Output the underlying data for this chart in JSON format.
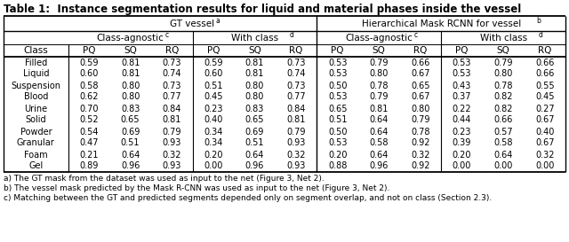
{
  "title": "Table 1:  Instance segmentation results for liquid and material phases inside the vessel",
  "rows": [
    [
      "Filled",
      "0.59",
      "0.81",
      "0.73",
      "0.59",
      "0.81",
      "0.73",
      "0.53",
      "0.79",
      "0.66",
      "0.53",
      "0.79",
      "0.66"
    ],
    [
      "Liquid",
      "0.60",
      "0.81",
      "0.74",
      "0.60",
      "0.81",
      "0.74",
      "0.53",
      "0.80",
      "0.67",
      "0.53",
      "0.80",
      "0.66"
    ],
    [
      "Suspension",
      "0.58",
      "0.80",
      "0.73",
      "0.51",
      "0.80",
      "0.73",
      "0.50",
      "0.78",
      "0.65",
      "0.43",
      "0.78",
      "0.55"
    ],
    [
      "Blood",
      "0.62",
      "0.80",
      "0.77",
      "0.45",
      "0.80",
      "0.77",
      "0.53",
      "0.79",
      "0.67",
      "0.37",
      "0.82",
      "0.45"
    ],
    [
      "Urine",
      "0.70",
      "0.83",
      "0.84",
      "0.23",
      "0.83",
      "0.84",
      "0.65",
      "0.81",
      "0.80",
      "0.22",
      "0.82",
      "0.27"
    ],
    [
      "Solid",
      "0.52",
      "0.65",
      "0.81",
      "0.40",
      "0.65",
      "0.81",
      "0.51",
      "0.64",
      "0.79",
      "0.44",
      "0.66",
      "0.67"
    ],
    [
      "Powder",
      "0.54",
      "0.69",
      "0.79",
      "0.34",
      "0.69",
      "0.79",
      "0.50",
      "0.64",
      "0.78",
      "0.23",
      "0.57",
      "0.40"
    ],
    [
      "Granular",
      "0.47",
      "0.51",
      "0.93",
      "0.34",
      "0.51",
      "0.93",
      "0.53",
      "0.58",
      "0.92",
      "0.39",
      "0.58",
      "0.67"
    ],
    [
      "Foam",
      "0.21",
      "0.64",
      "0.32",
      "0.20",
      "0.64",
      "0.32",
      "0.20",
      "0.64",
      "0.32",
      "0.20",
      "0.64",
      "0.32"
    ],
    [
      "Gel",
      "0.89",
      "0.96",
      "0.93",
      "0.00",
      "0.96",
      "0.93",
      "0.88",
      "0.96",
      "0.92",
      "0.00",
      "0.00",
      "0.00"
    ]
  ],
  "footnotes": [
    "a) The GT mask from the dataset was used as input to the net (Figure 3, Net 2).",
    "b) The vessel mask predicted by the Mask R-CNN was used as input to the net (Figure 3, Net 2).",
    "c) Matching between the GT and predicted segments depended only on segment overlap, and not on class (Section 2.3)."
  ],
  "col_header": [
    "Class",
    "PQ",
    "SQ",
    "RQ",
    "PQ",
    "SQ",
    "RQ",
    "PQ",
    "SQ",
    "RQ",
    "PQ",
    "SQ",
    "RQ"
  ],
  "subgroup_labels": [
    "Class-agnostic",
    "With class",
    "Class-agnostic",
    "With class"
  ],
  "subgroup_sups": [
    "c",
    "d",
    "c",
    "d"
  ],
  "group_labels": [
    "GT vessel",
    "Hierarchical Mask RCNN for vessel"
  ],
  "group_sups": [
    "a",
    "b"
  ],
  "font_size_title": 8.5,
  "font_size_header": 7.5,
  "font_size_data": 7.0,
  "font_size_footnote": 6.5,
  "font_size_sup": 5.5
}
